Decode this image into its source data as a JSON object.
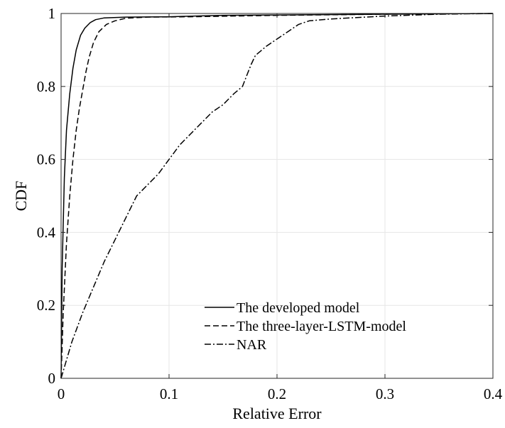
{
  "chart_data": {
    "type": "line",
    "xlabel": "Relative Error",
    "ylabel": "CDF",
    "xlim": [
      0,
      0.4
    ],
    "ylim": [
      0,
      1
    ],
    "x_ticks": [
      "0",
      "0.1",
      "0.2",
      "0.3",
      "0.4"
    ],
    "y_ticks": [
      "0",
      "0.2",
      "0.4",
      "0.6",
      "0.8",
      "1"
    ],
    "grid": true,
    "legend_position": "bottom-right",
    "series": [
      {
        "name": "The developed model",
        "line_style": "solid",
        "color": "#000000",
        "points": [
          [
            0,
            0
          ],
          [
            0.001,
            0.3
          ],
          [
            0.003,
            0.55
          ],
          [
            0.005,
            0.68
          ],
          [
            0.008,
            0.78
          ],
          [
            0.011,
            0.85
          ],
          [
            0.014,
            0.9
          ],
          [
            0.018,
            0.94
          ],
          [
            0.022,
            0.96
          ],
          [
            0.027,
            0.975
          ],
          [
            0.032,
            0.983
          ],
          [
            0.04,
            0.988
          ],
          [
            0.06,
            0.99
          ],
          [
            0.1,
            0.991
          ],
          [
            0.15,
            0.995
          ],
          [
            0.2,
            0.996
          ],
          [
            0.3,
            0.998
          ],
          [
            0.4,
            1.0
          ]
        ]
      },
      {
        "name": "The three-layer-LSTM-model",
        "line_style": "dashed",
        "color": "#000000",
        "points": [
          [
            0,
            0
          ],
          [
            0.002,
            0.18
          ],
          [
            0.005,
            0.37
          ],
          [
            0.008,
            0.5
          ],
          [
            0.011,
            0.6
          ],
          [
            0.014,
            0.68
          ],
          [
            0.017,
            0.74
          ],
          [
            0.02,
            0.79
          ],
          [
            0.023,
            0.84
          ],
          [
            0.026,
            0.88
          ],
          [
            0.03,
            0.92
          ],
          [
            0.035,
            0.95
          ],
          [
            0.042,
            0.97
          ],
          [
            0.05,
            0.98
          ],
          [
            0.06,
            0.987
          ],
          [
            0.08,
            0.99
          ],
          [
            0.12,
            0.991
          ],
          [
            0.2,
            0.995
          ],
          [
            0.3,
            0.998
          ],
          [
            0.4,
            1.0
          ]
        ]
      },
      {
        "name": "NAR",
        "line_style": "dashdot",
        "color": "#000000",
        "points": [
          [
            0,
            0
          ],
          [
            0.01,
            0.1
          ],
          [
            0.02,
            0.18
          ],
          [
            0.03,
            0.25
          ],
          [
            0.04,
            0.32
          ],
          [
            0.05,
            0.38
          ],
          [
            0.06,
            0.44
          ],
          [
            0.07,
            0.5
          ],
          [
            0.08,
            0.53
          ],
          [
            0.09,
            0.56
          ],
          [
            0.1,
            0.6
          ],
          [
            0.11,
            0.64
          ],
          [
            0.12,
            0.67
          ],
          [
            0.13,
            0.7
          ],
          [
            0.14,
            0.73
          ],
          [
            0.15,
            0.75
          ],
          [
            0.16,
            0.78
          ],
          [
            0.168,
            0.8
          ],
          [
            0.172,
            0.83
          ],
          [
            0.176,
            0.86
          ],
          [
            0.18,
            0.885
          ],
          [
            0.19,
            0.91
          ],
          [
            0.2,
            0.93
          ],
          [
            0.21,
            0.95
          ],
          [
            0.22,
            0.97
          ],
          [
            0.23,
            0.98
          ],
          [
            0.25,
            0.985
          ],
          [
            0.3,
            0.993
          ],
          [
            0.35,
            0.998
          ],
          [
            0.4,
            1.0
          ]
        ]
      }
    ]
  }
}
